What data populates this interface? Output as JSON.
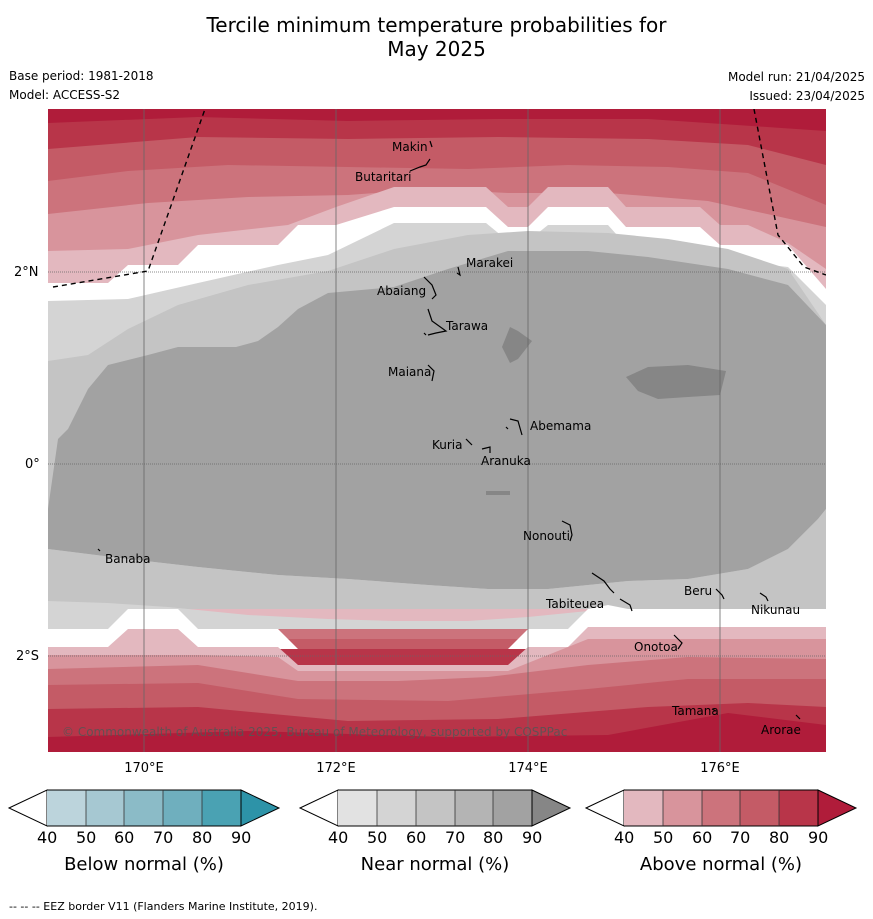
{
  "title_line1": "Tercile minimum temperature probabilities for",
  "title_line2": "May 2025",
  "meta": {
    "base_period": "Base period: 1981-2018",
    "model": "Model: ACCESS-S2",
    "model_run": "Model run: 21/04/2025",
    "issued": "Issued: 23/04/2025"
  },
  "axes": {
    "lat_labels": [
      "2°N",
      "0°",
      "2°S"
    ],
    "lon_labels": [
      "170°E",
      "172°E",
      "174°E",
      "176°E"
    ]
  },
  "places": [
    "Makin",
    "Butaritari",
    "Marakei",
    "Abaiang",
    "Tarawa",
    "Maiana",
    "Abemama",
    "Kuria",
    "Aranuka",
    "Nonouti",
    "Banaba",
    "Beru",
    "Tabiteuea",
    "Nikunau",
    "Onotoa",
    "Tamana",
    "Arorae"
  ],
  "copyright": "© Commonwealth of Australia 2025, Bureau of Meteorology, supported by COSPPac",
  "colorbars": {
    "ticks": [
      "40",
      "50",
      "60",
      "70",
      "80",
      "90"
    ],
    "below": {
      "title": "Below normal (%)",
      "colors": [
        "#ffffff",
        "#bcd4dc",
        "#a6c8d2",
        "#8bbbc7",
        "#6fafbe",
        "#4aa2b3",
        "#2d93a8"
      ]
    },
    "near": {
      "title": "Near normal (%)",
      "colors": [
        "#ffffff",
        "#e2e2e2",
        "#d4d4d4",
        "#c4c4c4",
        "#b4b4b4",
        "#a2a2a2",
        "#868686"
      ]
    },
    "above": {
      "title": "Above normal (%)",
      "colors": [
        "#ffffff",
        "#e3b8bf",
        "#d8949c",
        "#cc737c",
        "#c45b66",
        "#b83549",
        "#b01c3a"
      ]
    }
  },
  "footnote": "--  --  -- EEZ border V11 (Flanders Marine Institute, 2019)."
}
